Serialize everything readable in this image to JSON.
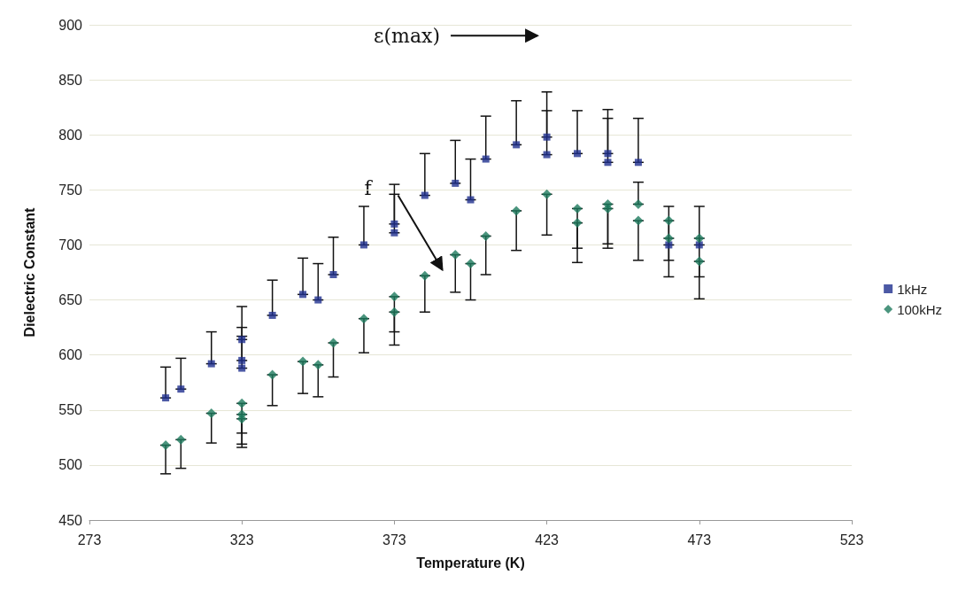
{
  "chart_data": {
    "type": "scatter",
    "xlabel": "Temperature (K)",
    "ylabel": "Dielectric Constant",
    "xlim": [
      273,
      523
    ],
    "xticks": [
      273,
      323,
      373,
      423,
      473,
      523
    ],
    "ylim": [
      450,
      900
    ],
    "yticks": [
      450,
      500,
      550,
      600,
      650,
      700,
      750,
      800,
      850,
      900
    ],
    "grid": "y",
    "legend": "right",
    "series": [
      {
        "name": "1kHz",
        "color": "#1f2f8f",
        "marker": "square",
        "x": [
          298,
          303,
          313,
          323,
          323,
          323,
          333,
          343,
          348,
          353,
          363,
          373,
          373,
          383,
          393,
          398,
          403,
          413,
          423,
          423,
          433,
          443,
          443,
          453,
          463,
          473
        ],
        "values": [
          561,
          569,
          592,
          614,
          595,
          588,
          636,
          655,
          650,
          673,
          700,
          719,
          711,
          745,
          756,
          741,
          778,
          791,
          798,
          782,
          783,
          783,
          775,
          775,
          700,
          700
        ],
        "errors": [
          [
            561,
            589
          ],
          [
            569,
            597
          ],
          [
            592,
            621
          ],
          [
            614,
            644
          ],
          [
            595,
            625
          ],
          [
            588,
            617
          ],
          [
            636,
            668
          ],
          [
            655,
            688
          ],
          [
            650,
            683
          ],
          [
            673,
            707
          ],
          [
            700,
            735
          ],
          [
            719,
            755
          ],
          [
            711,
            746
          ],
          [
            745,
            783
          ],
          [
            756,
            795
          ],
          [
            741,
            778
          ],
          [
            778,
            817
          ],
          [
            791,
            831
          ],
          [
            798,
            839
          ],
          [
            782,
            822
          ],
          [
            783,
            822
          ],
          [
            783,
            823
          ],
          [
            775,
            815
          ],
          [
            775,
            815
          ],
          [
            700,
            735
          ],
          [
            700,
            735
          ]
        ]
      },
      {
        "name": "100kHz",
        "color": "#1e7a5e",
        "marker": "diamond",
        "x": [
          298,
          303,
          313,
          323,
          323,
          323,
          333,
          343,
          348,
          353,
          363,
          373,
          373,
          383,
          393,
          398,
          403,
          413,
          423,
          433,
          433,
          443,
          443,
          453,
          453,
          463,
          463,
          473,
          473
        ],
        "values": [
          518,
          523,
          547,
          556,
          546,
          542,
          582,
          594,
          591,
          611,
          633,
          653,
          639,
          672,
          691,
          683,
          708,
          731,
          746,
          733,
          720,
          737,
          733,
          737,
          722,
          722,
          706,
          706,
          685
        ],
        "errors": [
          [
            492,
            518
          ],
          [
            497,
            523
          ],
          [
            520,
            547
          ],
          [
            529,
            556
          ],
          [
            519,
            546
          ],
          [
            516,
            542
          ],
          [
            554,
            582
          ],
          [
            565,
            594
          ],
          [
            562,
            591
          ],
          [
            580,
            611
          ],
          [
            602,
            633
          ],
          [
            621,
            653
          ],
          [
            609,
            639
          ],
          [
            639,
            672
          ],
          [
            657,
            691
          ],
          [
            650,
            683
          ],
          [
            673,
            708
          ],
          [
            695,
            731
          ],
          [
            709,
            746
          ],
          [
            697,
            733
          ],
          [
            684,
            720
          ],
          [
            701,
            737
          ],
          [
            697,
            733
          ],
          [
            737,
            757
          ],
          [
            686,
            722
          ],
          [
            686,
            722
          ],
          [
            671,
            706
          ],
          [
            671,
            706
          ],
          [
            651,
            685
          ]
        ]
      }
    ],
    "annotations": [
      "ε(max)",
      "f"
    ]
  }
}
